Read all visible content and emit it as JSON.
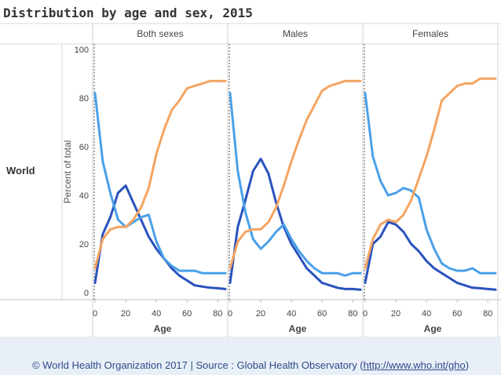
{
  "chart_data": {
    "type": "line",
    "title": "Distribution by age and sex, 2015",
    "row_label": "World",
    "ylabel": "Percent of total",
    "xlabel": "Age",
    "ylim": [
      0,
      100
    ],
    "xlim": [
      0,
      85
    ],
    "yticks": [
      0,
      20,
      40,
      60,
      80,
      100
    ],
    "xticks": [
      0,
      20,
      40,
      60,
      80
    ],
    "series_colors": [
      "#2a52be",
      "#4aa0e8",
      "#f4a460"
    ],
    "panels": [
      {
        "name": "Both sexes",
        "series": [
          {
            "x": [
              0,
              5,
              10,
              15,
              20,
              25,
              30,
              35,
              40,
              45,
              50,
              55,
              60,
              65,
              70,
              75,
              80,
              85
            ],
            "values": [
              4,
              24,
              31,
              41,
              44,
              37,
              30,
              23,
              18,
              14,
              10,
              7,
              5,
              3,
              2.5,
              2,
              1.8,
              1.5
            ]
          },
          {
            "x": [
              0,
              5,
              10,
              15,
              20,
              25,
              30,
              35,
              40,
              45,
              50,
              55,
              60,
              65,
              70,
              75,
              80,
              85
            ],
            "values": [
              82,
              54,
              41,
              30,
              27,
              29,
              31,
              32,
              21,
              14,
              11,
              9,
              9,
              9,
              8,
              8,
              8,
              8
            ]
          },
          {
            "x": [
              0,
              5,
              10,
              15,
              20,
              25,
              30,
              35,
              40,
              45,
              50,
              55,
              60,
              65,
              70,
              75,
              80,
              85
            ],
            "values": [
              10,
              22,
              26,
              27,
              27,
              30,
              35,
              43,
              57,
              67,
              75,
              79,
              84,
              85,
              86,
              87,
              87,
              87
            ]
          }
        ]
      },
      {
        "name": "Males",
        "series": [
          {
            "x": [
              0,
              5,
              10,
              15,
              20,
              25,
              30,
              35,
              40,
              45,
              50,
              55,
              60,
              65,
              70,
              75,
              80,
              85
            ],
            "values": [
              4,
              27,
              38,
              50,
              55,
              49,
              37,
              27,
              20,
              15,
              10,
              7,
              4,
              3,
              2,
              1.5,
              1.5,
              1.2
            ]
          },
          {
            "x": [
              0,
              5,
              10,
              15,
              20,
              25,
              30,
              35,
              40,
              45,
              50,
              55,
              60,
              65,
              70,
              75,
              80,
              85
            ],
            "values": [
              82,
              50,
              33,
              22,
              18,
              21,
              25,
              28,
              22,
              17,
              13,
              10,
              8,
              8,
              8,
              7,
              8,
              8
            ]
          },
          {
            "x": [
              0,
              5,
              10,
              15,
              20,
              25,
              30,
              35,
              40,
              45,
              50,
              55,
              60,
              65,
              70,
              75,
              80,
              85
            ],
            "values": [
              10,
              21,
              25,
              26,
              26,
              29,
              35,
              44,
              54,
              63,
              71,
              77,
              83,
              85,
              86,
              87,
              87,
              87
            ]
          }
        ]
      },
      {
        "name": "Females",
        "series": [
          {
            "x": [
              0,
              5,
              10,
              15,
              20,
              25,
              30,
              35,
              40,
              45,
              50,
              55,
              60,
              65,
              70,
              75,
              80,
              85
            ],
            "values": [
              4,
              20,
              23,
              29,
              28,
              25,
              20,
              17,
              13,
              10,
              8,
              6,
              4,
              3,
              2,
              1.8,
              1.5,
              1.2
            ]
          },
          {
            "x": [
              0,
              5,
              10,
              15,
              20,
              25,
              30,
              35,
              40,
              45,
              50,
              55,
              60,
              65,
              70,
              75,
              80,
              85
            ],
            "values": [
              82,
              56,
              46,
              40,
              41,
              43,
              42,
              39,
              26,
              18,
              12,
              10,
              9,
              9,
              10,
              8,
              8,
              8
            ]
          },
          {
            "x": [
              0,
              5,
              10,
              15,
              20,
              25,
              30,
              35,
              40,
              45,
              50,
              55,
              60,
              65,
              70,
              75,
              80,
              85
            ],
            "values": [
              10,
              22,
              28,
              30,
              29,
              32,
              38,
              47,
              56,
              67,
              79,
              82,
              85,
              86,
              86,
              88,
              88,
              88
            ]
          }
        ]
      }
    ]
  },
  "footer": {
    "prefix": "© World Health Organization 2017 | Source : Global Health Observatory (",
    "link": "http://www.who.int/gho",
    "suffix": ")"
  }
}
